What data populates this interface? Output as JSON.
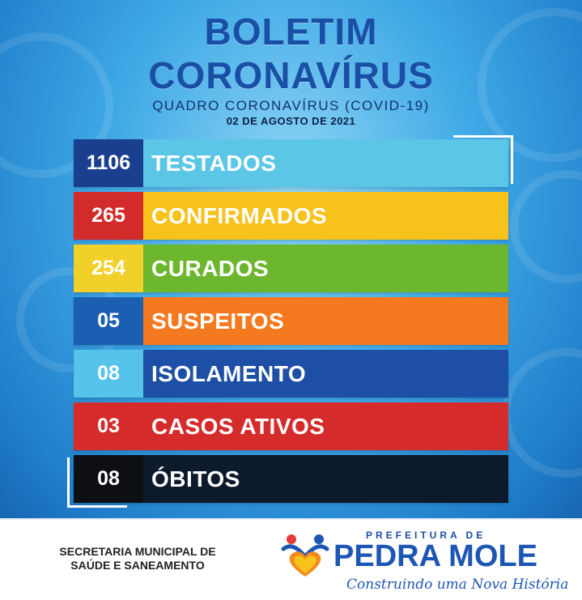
{
  "header": {
    "title_line1": "BOLETIM",
    "title_line2": "CORONAVÍRUS",
    "subtitle": "QUADRO CORONAVÍRUS (COVID-19)",
    "date": "02 DE AGOSTO DE 2021"
  },
  "rows": [
    {
      "value": "1106",
      "label": "TESTADOS",
      "num_color": "#1a3f8f",
      "label_color": "#5cc6e6"
    },
    {
      "value": "265",
      "label": "CONFIRMADOS",
      "num_color": "#d32a2a",
      "label_color": "#f7c21b"
    },
    {
      "value": "254",
      "label": "CURADOS",
      "num_color": "#f2d02a",
      "label_color": "#6db72f"
    },
    {
      "value": "05",
      "label": "SUSPEITOS",
      "num_color": "#1b5fb3",
      "label_color": "#f5791e"
    },
    {
      "value": "08",
      "label": "ISOLAMENTO",
      "num_color": "#55c3ea",
      "label_color": "#1e4fa6"
    },
    {
      "value": "03",
      "label": "CASOS ATIVOS",
      "num_color": "#d62b2b",
      "label_color": "#d62b2b"
    },
    {
      "value": "08",
      "label": "ÓBITOS",
      "num_color": "#0d0f14",
      "label_color": "#0d1a2c"
    }
  ],
  "footer": {
    "secretaria_line1": "SECRETARIA MUNICIPAL DE",
    "secretaria_line2": "SAÚDE E SANEAMENTO",
    "prefeitura": "PREFEITURA DE",
    "city": "PEDRA MOLE",
    "slogan": "Construindo uma Nova História"
  }
}
